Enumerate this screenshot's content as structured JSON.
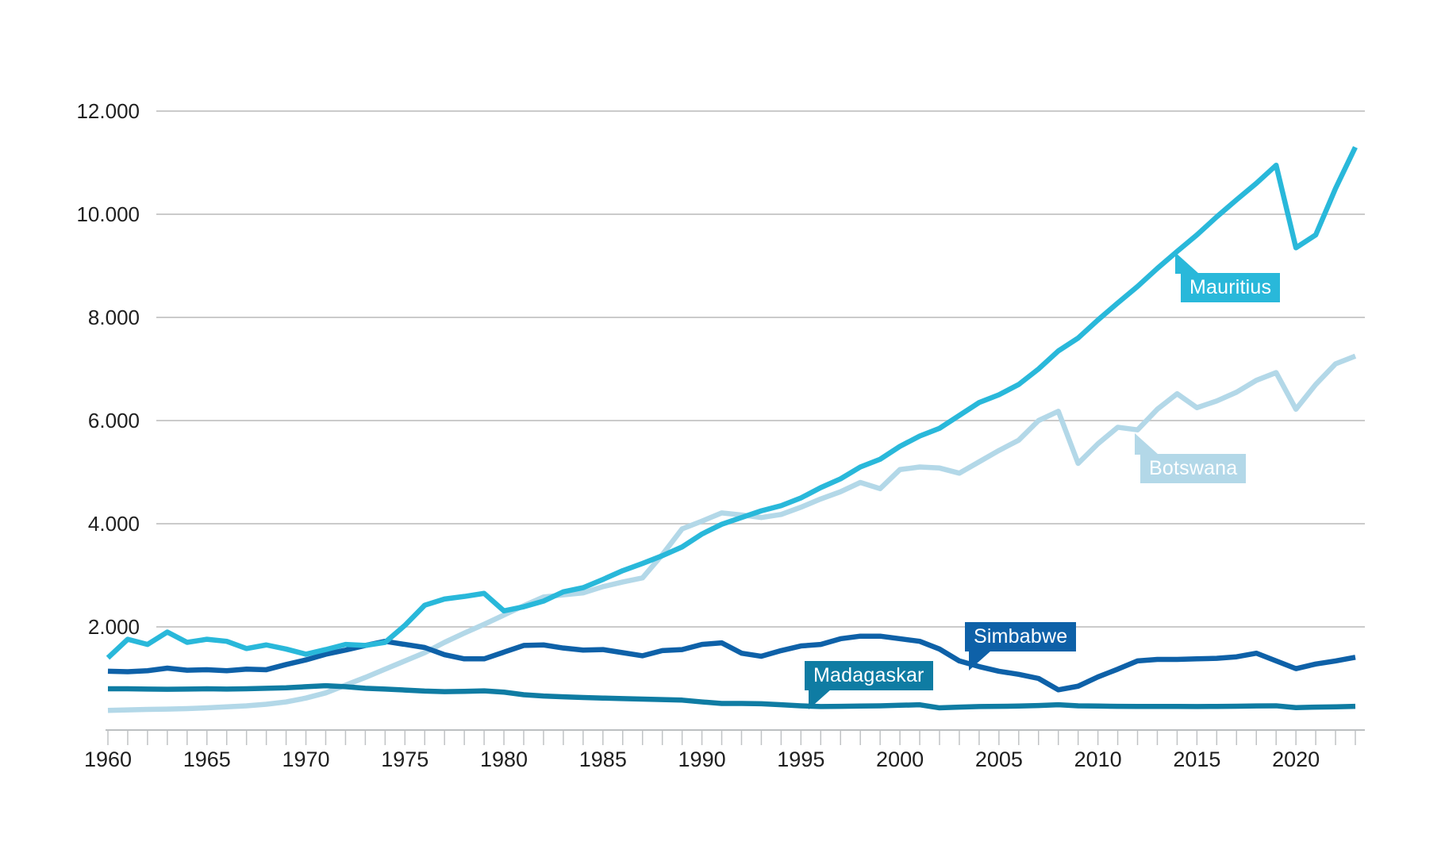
{
  "chart_data": {
    "type": "line",
    "title": "",
    "xlabel": "",
    "ylabel": "",
    "xlim": [
      1960,
      2023
    ],
    "ylim": [
      0,
      12600
    ],
    "grid": "horizontal",
    "legend_position": "inline-badges",
    "x": [
      1960,
      1961,
      1962,
      1963,
      1964,
      1965,
      1966,
      1967,
      1968,
      1969,
      1970,
      1971,
      1972,
      1973,
      1974,
      1975,
      1976,
      1977,
      1978,
      1979,
      1980,
      1981,
      1982,
      1983,
      1984,
      1985,
      1986,
      1987,
      1988,
      1989,
      1990,
      1991,
      1992,
      1993,
      1994,
      1995,
      1996,
      1997,
      1998,
      1999,
      2000,
      2001,
      2002,
      2003,
      2004,
      2005,
      2006,
      2007,
      2008,
      2009,
      2010,
      2011,
      2012,
      2013,
      2014,
      2015,
      2016,
      2017,
      2018,
      2019,
      2020,
      2021,
      2022,
      2023
    ],
    "x_tick_labels": [
      "1960",
      "1965",
      "1970",
      "1975",
      "1980",
      "1985",
      "1990",
      "1995",
      "2000",
      "2005",
      "2010",
      "2015",
      "2020"
    ],
    "y_ticks": [
      2000,
      4000,
      6000,
      8000,
      10000,
      12000
    ],
    "y_tick_labels": [
      "2.000",
      "4.000",
      "6.000",
      "8.000",
      "10.000",
      "12.000"
    ],
    "series": [
      {
        "name": "Botswana",
        "color": "#b3d8e8",
        "values": [
          380,
          390,
          400,
          405,
          415,
          430,
          450,
          470,
          500,
          545,
          620,
          720,
          870,
          1020,
          1180,
          1340,
          1500,
          1700,
          1880,
          2050,
          2230,
          2410,
          2580,
          2620,
          2660,
          2780,
          2870,
          2950,
          3400,
          3900,
          4050,
          4210,
          4170,
          4120,
          4180,
          4320,
          4480,
          4620,
          4800,
          4680,
          5050,
          5100,
          5080,
          4980,
          5200,
          5420,
          5620,
          6000,
          6180,
          5170,
          5550,
          5870,
          5820,
          6220,
          6520,
          6250,
          6380,
          6550,
          6780,
          6930,
          6220,
          6700,
          7100,
          7250
        ]
      },
      {
        "name": "Madagaskar",
        "color": "#0f7ca3",
        "values": [
          800,
          800,
          795,
          790,
          795,
          800,
          795,
          800,
          810,
          820,
          840,
          860,
          840,
          810,
          795,
          775,
          755,
          745,
          750,
          760,
          735,
          685,
          660,
          645,
          630,
          620,
          610,
          600,
          590,
          580,
          545,
          515,
          515,
          510,
          490,
          470,
          455,
          460,
          465,
          470,
          480,
          490,
          430,
          445,
          455,
          460,
          465,
          475,
          490,
          470,
          465,
          460,
          458,
          458,
          458,
          455,
          458,
          462,
          468,
          470,
          435,
          445,
          450,
          460
        ]
      },
      {
        "name": "Simbabwe",
        "color": "#0e61a8",
        "values": [
          1140,
          1130,
          1150,
          1200,
          1160,
          1170,
          1150,
          1180,
          1170,
          1270,
          1360,
          1470,
          1550,
          1640,
          1720,
          1660,
          1600,
          1460,
          1380,
          1380,
          1510,
          1640,
          1650,
          1590,
          1550,
          1560,
          1500,
          1440,
          1540,
          1560,
          1660,
          1690,
          1490,
          1430,
          1540,
          1630,
          1660,
          1770,
          1820,
          1820,
          1770,
          1720,
          1570,
          1340,
          1230,
          1140,
          1080,
          1000,
          780,
          850,
          1030,
          1180,
          1340,
          1370,
          1370,
          1380,
          1390,
          1420,
          1490,
          1340,
          1190,
          1280,
          1340,
          1410
        ]
      },
      {
        "name": "Mauritius",
        "color": "#29b8da",
        "values": [
          1400,
          1760,
          1660,
          1900,
          1700,
          1760,
          1720,
          1580,
          1650,
          1570,
          1470,
          1560,
          1660,
          1640,
          1700,
          2030,
          2420,
          2540,
          2590,
          2650,
          2310,
          2390,
          2500,
          2680,
          2760,
          2920,
          3090,
          3230,
          3380,
          3550,
          3800,
          3990,
          4120,
          4250,
          4350,
          4500,
          4700,
          4870,
          5100,
          5250,
          5500,
          5700,
          5850,
          6100,
          6350,
          6500,
          6700,
          7000,
          7350,
          7600,
          7950,
          8280,
          8600,
          8950,
          9280,
          9600,
          9950,
          10280,
          10600,
          10950,
          9350,
          9600,
          10500,
          11300
        ]
      }
    ],
    "annotations": [
      {
        "text": "Mauritius",
        "series": "Mauritius",
        "tail": "up"
      },
      {
        "text": "Botswana",
        "series": "Botswana",
        "tail": "up"
      },
      {
        "text": "Simbabwe",
        "series": "Simbabwe",
        "tail": "down"
      },
      {
        "text": "Madagaskar",
        "series": "Madagaskar",
        "tail": "down"
      }
    ],
    "colors": {
      "background": "#ffffff",
      "gridline": "#cbcbcb",
      "axis_line": "#bcbfc1",
      "tick": "#c0c3c5",
      "label_text": "#1f1f1f"
    }
  }
}
